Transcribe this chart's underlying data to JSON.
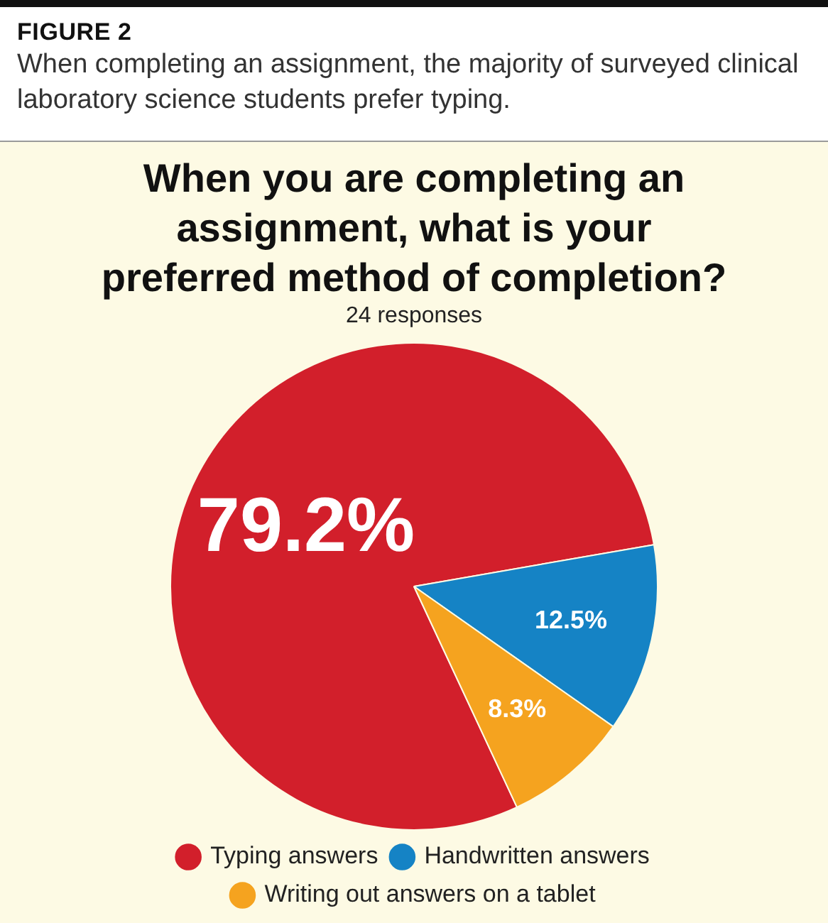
{
  "chart_data": {
    "type": "pie",
    "title": "When you are completing an assignment, what is your preferred method of completion?",
    "subtitle": "24 responses",
    "annotations": [
      "FIGURE 2",
      "When completing an assignment, the majority of surveyed clinical laboratory science students prefer typing."
    ],
    "categories": [
      "Typing answers",
      "Handwritten answers",
      "Writing out answers on a tablet"
    ],
    "values": [
      79.2,
      12.5,
      8.3
    ],
    "value_labels": [
      "79.2%",
      "12.5%",
      "8.3%"
    ],
    "colors": [
      "#d21f2b",
      "#1583c5",
      "#f5a31f"
    ],
    "legend": "bottom"
  }
}
